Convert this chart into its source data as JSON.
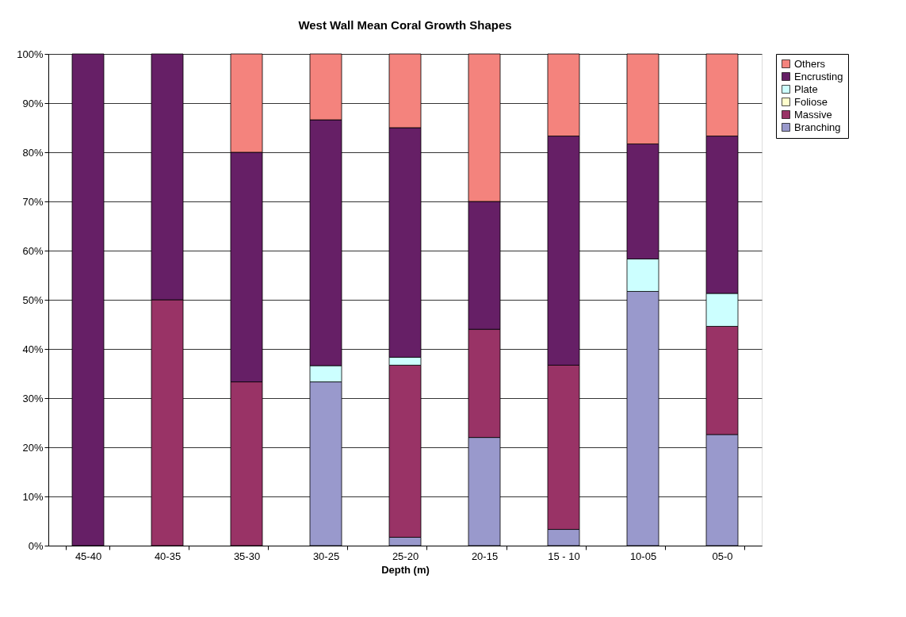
{
  "chart_data": {
    "type": "bar",
    "title": "West Wall Mean Coral Growth Shapes",
    "xlabel": "Depth (m)",
    "stacked": true,
    "categories": [
      "45-40",
      "40-35",
      "35-30",
      "30-25",
      "25-20",
      "20-15",
      "15 - 10",
      "10-05",
      "05-0"
    ],
    "series": [
      {
        "name": "Branching",
        "color": "#9999cc",
        "values": [
          0,
          0,
          0,
          33.3,
          1.7,
          22,
          3.3,
          51.7,
          22.6
        ]
      },
      {
        "name": "Massive",
        "color": "#993366",
        "values": [
          0,
          50,
          33.3,
          0,
          35,
          22,
          33.4,
          0,
          22
        ]
      },
      {
        "name": "Foliose",
        "color": "#ffffcc",
        "values": [
          0,
          0,
          0,
          0,
          0,
          0,
          0,
          0,
          0
        ]
      },
      {
        "name": "Plate",
        "color": "#ccffff",
        "values": [
          0,
          0,
          0,
          3.3,
          1.6,
          0,
          0,
          6.6,
          6.7
        ]
      },
      {
        "name": "Encrusting",
        "color": "#661f66",
        "values": [
          100,
          50,
          46.7,
          50,
          46.7,
          26,
          46.6,
          23.4,
          32
        ]
      },
      {
        "name": "Others",
        "color": "#f4837d",
        "values": [
          0,
          0,
          20,
          13.4,
          15,
          30,
          16.7,
          18.3,
          16.7
        ]
      }
    ],
    "ylim": [
      0,
      100
    ],
    "yticks": [
      {
        "value": 0,
        "label": "0%"
      },
      {
        "value": 10,
        "label": "10%"
      },
      {
        "value": 20,
        "label": "20%"
      },
      {
        "value": 30,
        "label": "30%"
      },
      {
        "value": 40,
        "label": "40%"
      },
      {
        "value": 50,
        "label": "50%"
      },
      {
        "value": 60,
        "label": "60%"
      },
      {
        "value": 70,
        "label": "70%"
      },
      {
        "value": 80,
        "label": "80%"
      },
      {
        "value": 90,
        "label": "90%"
      },
      {
        "value": 100,
        "label": "100%"
      }
    ],
    "grid": "y",
    "legend": "right"
  }
}
